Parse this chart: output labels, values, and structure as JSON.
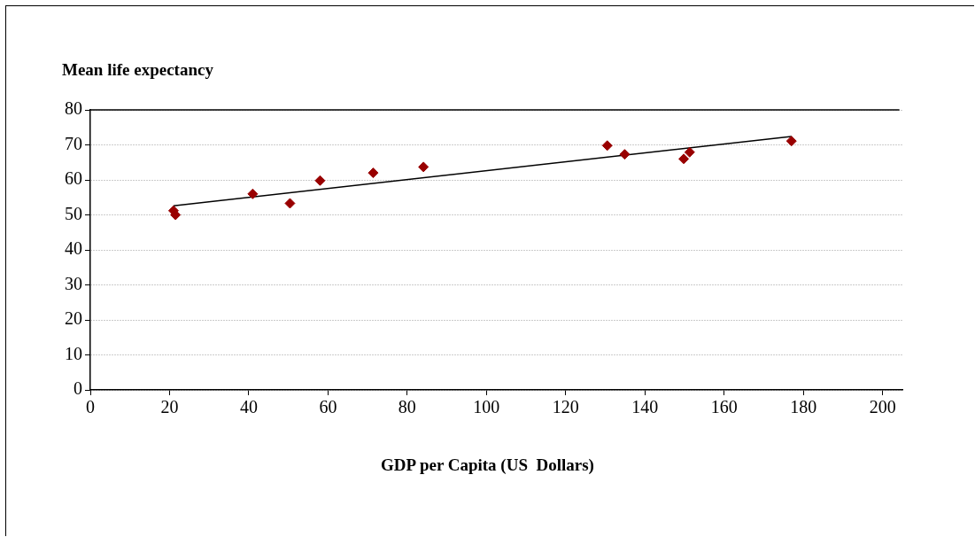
{
  "chart_data": {
    "type": "scatter",
    "ylabel": "Mean life expectancy",
    "xlabel": "GDP per Capita (US  Dollars)",
    "xlim": [
      0,
      205
    ],
    "xticks": [
      0,
      20,
      40,
      60,
      80,
      100,
      120,
      140,
      160,
      180,
      200
    ],
    "ylim": [
      0,
      80
    ],
    "yticks": [
      0,
      10,
      20,
      30,
      40,
      50,
      60,
      70,
      80
    ],
    "grid": "y",
    "series": [
      {
        "color": "#990000",
        "marker": "diamond",
        "x": [
          21,
          21.5,
          41,
          50.4,
          58,
          71.4,
          84.1,
          130.5,
          134.9,
          149.8,
          151.3,
          177
        ],
        "values": [
          51.2,
          50,
          56,
          53.3,
          59.8,
          62,
          63.7,
          69.8,
          67.3,
          66,
          67.9,
          71.1
        ]
      },
      {
        "type": "line",
        "color": "#000000",
        "marker": "none",
        "x": [
          21,
          177
        ],
        "values": [
          52.6,
          72.4
        ]
      }
    ]
  }
}
